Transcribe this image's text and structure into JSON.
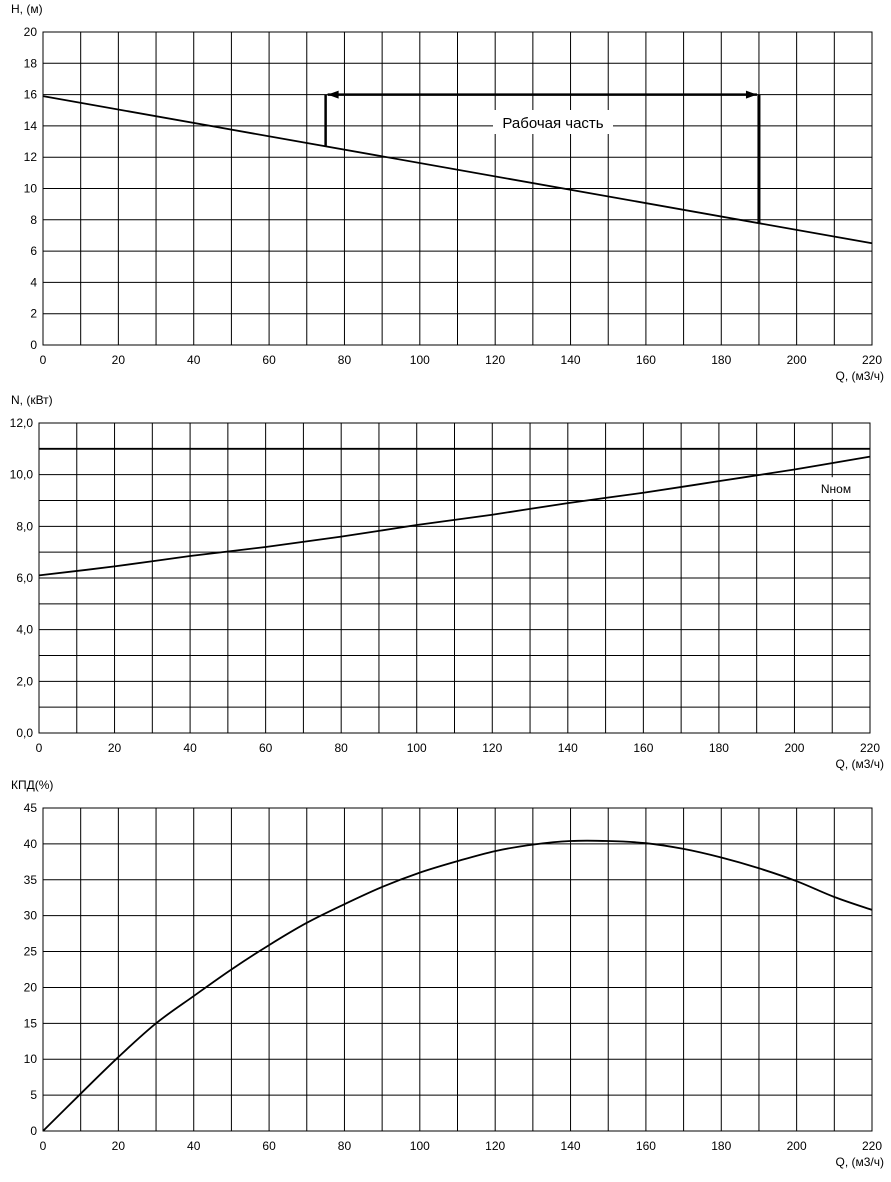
{
  "chart_data": [
    {
      "type": "line",
      "ylabel": "H, (м)",
      "xlabel": "Q, (м3/ч)",
      "xlim": [
        0,
        220
      ],
      "ylim": [
        0,
        20
      ],
      "x_ticks": [
        0,
        20,
        40,
        60,
        80,
        100,
        120,
        140,
        160,
        180,
        200,
        220
      ],
      "y_ticks": [
        0,
        2,
        4,
        6,
        8,
        10,
        12,
        14,
        16,
        18,
        20
      ],
      "y_tick_labels": [
        "0",
        "2",
        "4",
        "6",
        "8",
        "10",
        "12",
        "14",
        "16",
        "18",
        "20"
      ],
      "grid": true,
      "series": [
        {
          "x": [
            0,
            220
          ],
          "y": [
            15.9,
            6.5
          ]
        }
      ],
      "annotation": {
        "text": "Рабочая часть",
        "q_start": 75,
        "q_end": 190,
        "level": 16
      }
    },
    {
      "type": "line",
      "ylabel": "N, (кВт)",
      "xlabel": "Q, (м3/ч)",
      "xlim": [
        0,
        220
      ],
      "ylim": [
        0,
        12
      ],
      "x_ticks": [
        0,
        20,
        40,
        60,
        80,
        100,
        120,
        140,
        160,
        180,
        200,
        220
      ],
      "y_ticks": [
        0,
        2,
        4,
        6,
        8,
        10,
        12
      ],
      "y_tick_labels": [
        "0,0",
        "2,0",
        "4,0",
        "6,0",
        "8,0",
        "10,0",
        "12,0"
      ],
      "grid": true,
      "series": [
        {
          "x": [
            0,
            20,
            40,
            60,
            80,
            100,
            120,
            140,
            160,
            180,
            200,
            220
          ],
          "y": [
            6.1,
            6.45,
            6.85,
            7.2,
            7.6,
            8.05,
            8.45,
            8.9,
            9.3,
            9.75,
            10.2,
            10.7
          ]
        },
        {
          "name": "Nном",
          "x": [
            0,
            220
          ],
          "y": [
            11.0,
            11.0
          ]
        }
      ],
      "label_nnom": "Nном"
    },
    {
      "type": "line",
      "ylabel": "КПД(%)",
      "xlabel": "Q, (м3/ч)",
      "xlim": [
        0,
        220
      ],
      "ylim": [
        0,
        45
      ],
      "x_ticks": [
        0,
        20,
        40,
        60,
        80,
        100,
        120,
        140,
        160,
        180,
        200,
        220
      ],
      "y_ticks": [
        0,
        5,
        10,
        15,
        20,
        25,
        30,
        35,
        40,
        45
      ],
      "y_tick_labels": [
        "0",
        "5",
        "10",
        "15",
        "20",
        "25",
        "30",
        "35",
        "40",
        "45"
      ],
      "grid": true,
      "series": [
        {
          "x": [
            0,
            10,
            20,
            30,
            40,
            50,
            60,
            70,
            80,
            90,
            100,
            110,
            120,
            130,
            140,
            150,
            160,
            170,
            180,
            190,
            200,
            210,
            220
          ],
          "y": [
            0,
            5.2,
            10.3,
            15,
            18.8,
            22.5,
            25.9,
            29,
            31.6,
            34,
            36,
            37.6,
            39,
            39.9,
            40.4,
            40.4,
            40.1,
            39.3,
            38.1,
            36.6,
            34.8,
            32.6,
            30.8
          ]
        }
      ]
    }
  ]
}
